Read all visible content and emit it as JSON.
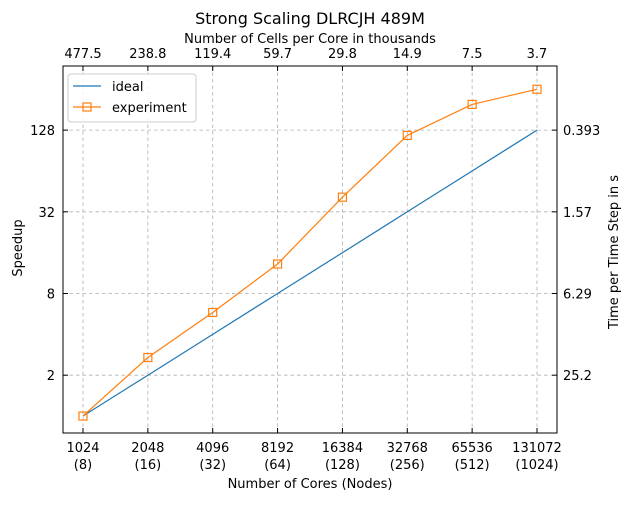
{
  "chart_data": {
    "type": "line",
    "title": "Strong Scaling DLRCJH 489M",
    "xlabel": "Number of Cores (Nodes)",
    "ylabel": "Speedup",
    "x_scale": "log2",
    "y_scale": "log2",
    "xlim": [
      1024,
      131072
    ],
    "ylim": [
      0.75,
      380
    ],
    "grid": true,
    "legend_position": "top-left",
    "x_ticks": [
      {
        "value": 1024,
        "label": "1024",
        "sublabel": "(8)"
      },
      {
        "value": 2048,
        "label": "2048",
        "sublabel": "(16)"
      },
      {
        "value": 4096,
        "label": "4096",
        "sublabel": "(32)"
      },
      {
        "value": 8192,
        "label": "8192",
        "sublabel": "(64)"
      },
      {
        "value": 16384,
        "label": "16384",
        "sublabel": "(128)"
      },
      {
        "value": 32768,
        "label": "32768",
        "sublabel": "(256)"
      },
      {
        "value": 65536,
        "label": "65536",
        "sublabel": "(512)"
      },
      {
        "value": 131072,
        "label": "131072",
        "sublabel": "(1024)"
      }
    ],
    "y_ticks": [
      {
        "value": 2,
        "label": "2"
      },
      {
        "value": 8,
        "label": "8"
      },
      {
        "value": 32,
        "label": "32"
      },
      {
        "value": 128,
        "label": "128"
      }
    ],
    "top_axis": {
      "label": "Number of Cells per Core in thousands",
      "ticks": [
        "477.5",
        "238.8",
        "119.4",
        "59.7",
        "29.8",
        "14.9",
        "7.5",
        "3.7"
      ]
    },
    "right_axis": {
      "label": "Time per Time Step in s",
      "ticks": [
        {
          "at_speedup": 2,
          "label": "25.2"
        },
        {
          "at_speedup": 8,
          "label": "6.29"
        },
        {
          "at_speedup": 32,
          "label": "1.57"
        },
        {
          "at_speedup": 128,
          "label": "0.393"
        }
      ]
    },
    "x": [
      1024,
      2048,
      4096,
      8192,
      16384,
      32768,
      65536,
      131072
    ],
    "series": [
      {
        "name": "ideal",
        "color": "#1f77b4",
        "marker": "none",
        "values": [
          1,
          2,
          4,
          8,
          16,
          32,
          64,
          128
        ]
      },
      {
        "name": "experiment",
        "color": "#ff7f0e",
        "marker": "square",
        "values": [
          1,
          2.7,
          5.8,
          13.2,
          41,
          117,
          198,
          256
        ]
      }
    ]
  }
}
